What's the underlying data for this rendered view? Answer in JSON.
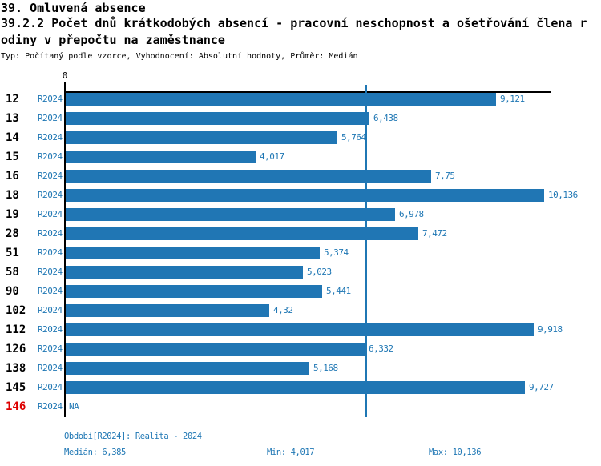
{
  "header": {
    "title_line1": "39. Omluvená absence",
    "title_line2": "39.2.2 Počet dnů krátkodobých absencí - pracovní neschopnost a ošetřování člena r",
    "title_line3": "odiny v přepočtu na zaměstnance",
    "meta": "Typ: Počítaný podle vzorce, Vyhodnocení: Absolutní hodnoty, Průměr: Medián"
  },
  "axis": {
    "zero_label": "0"
  },
  "colors": {
    "bar": "#2076b4",
    "median_line": "#1f77b4",
    "label_blue": "#1f77b4",
    "highlight_red": "#dd0000",
    "axis_black": "#000000"
  },
  "rows": [
    {
      "id": "12",
      "period": "R2024",
      "value": 9.121,
      "value_label": "9,121",
      "highlight": false
    },
    {
      "id": "13",
      "period": "R2024",
      "value": 6.438,
      "value_label": "6,438",
      "highlight": false
    },
    {
      "id": "14",
      "period": "R2024",
      "value": 5.764,
      "value_label": "5,764",
      "highlight": false
    },
    {
      "id": "15",
      "period": "R2024",
      "value": 4.017,
      "value_label": "4,017",
      "highlight": false
    },
    {
      "id": "16",
      "period": "R2024",
      "value": 7.75,
      "value_label": "7,75",
      "highlight": false
    },
    {
      "id": "18",
      "period": "R2024",
      "value": 10.136,
      "value_label": "10,136",
      "highlight": false
    },
    {
      "id": "19",
      "period": "R2024",
      "value": 6.978,
      "value_label": "6,978",
      "highlight": false
    },
    {
      "id": "28",
      "period": "R2024",
      "value": 7.472,
      "value_label": "7,472",
      "highlight": false
    },
    {
      "id": "51",
      "period": "R2024",
      "value": 5.374,
      "value_label": "5,374",
      "highlight": false
    },
    {
      "id": "58",
      "period": "R2024",
      "value": 5.023,
      "value_label": "5,023",
      "highlight": false
    },
    {
      "id": "90",
      "period": "R2024",
      "value": 5.441,
      "value_label": "5,441",
      "highlight": false
    },
    {
      "id": "102",
      "period": "R2024",
      "value": 4.32,
      "value_label": "4,32",
      "highlight": false
    },
    {
      "id": "112",
      "period": "R2024",
      "value": 9.918,
      "value_label": "9,918",
      "highlight": false
    },
    {
      "id": "126",
      "period": "R2024",
      "value": 6.332,
      "value_label": "6,332",
      "highlight": false
    },
    {
      "id": "138",
      "period": "R2024",
      "value": 5.168,
      "value_label": "5,168",
      "highlight": false
    },
    {
      "id": "145",
      "period": "R2024",
      "value": 9.727,
      "value_label": "9,727",
      "highlight": false
    },
    {
      "id": "146",
      "period": "R2024",
      "value": null,
      "value_label": "NA",
      "highlight": true
    }
  ],
  "footer": {
    "period_line": "Období[R2024]: Realita - 2024",
    "median": "Medián: 6,385",
    "min": "Min: 4,017",
    "max": "Max: 10,136"
  },
  "chart_data": {
    "type": "bar",
    "orientation": "horizontal",
    "title": "39.2.2 Počet dnů krátkodobých absencí - pracovní neschopnost a ošetřování člena rodiny v přepočtu na zaměstnance",
    "categories": [
      "12",
      "13",
      "14",
      "15",
      "16",
      "18",
      "19",
      "28",
      "51",
      "58",
      "90",
      "102",
      "112",
      "126",
      "138",
      "145",
      "146"
    ],
    "series": [
      {
        "name": "R2024",
        "values": [
          9.121,
          6.438,
          5.764,
          4.017,
          7.75,
          10.136,
          6.978,
          7.472,
          5.374,
          5.023,
          5.441,
          4.32,
          9.918,
          6.332,
          5.168,
          9.727,
          null
        ]
      }
    ],
    "median": 6.385,
    "min": 4.017,
    "max": 10.136,
    "xlim": [
      0,
      10.26
    ],
    "grid": false,
    "legend": false,
    "median_reference_line": 6.385
  }
}
